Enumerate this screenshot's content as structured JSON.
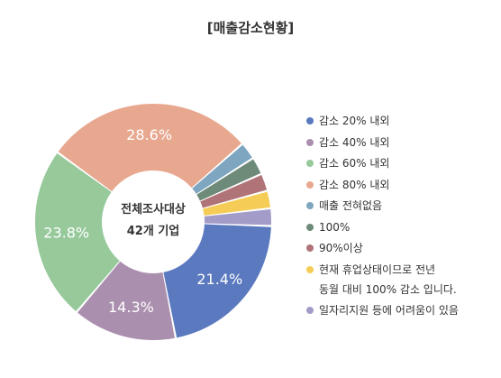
{
  "chart_data": {
    "type": "pie",
    "title": "[매출감소현황]",
    "center_label": [
      "전체조사대상",
      "42개 기업"
    ],
    "legend_position": "right",
    "slices": [
      {
        "label": "감소 20% 내외",
        "value": 21.4,
        "value_label": "21.4%",
        "color": "#5a79bf"
      },
      {
        "label": "감소 40% 내외",
        "value": 14.3,
        "value_label": "14.3%",
        "color": "#ab8fae"
      },
      {
        "label": "감소 60% 내외",
        "value": 23.8,
        "value_label": "23.8%",
        "color": "#97c99b"
      },
      {
        "label": "감소 80% 내외",
        "value": 28.6,
        "value_label": "28.6%",
        "color": "#e8a890"
      },
      {
        "label": "매출 전혀없음",
        "value": 2.4,
        "value_label": "",
        "color": "#7ea6c0"
      },
      {
        "label": "100%",
        "value": 2.4,
        "value_label": "",
        "color": "#6e8a78"
      },
      {
        "label": "90%이상",
        "value": 2.4,
        "value_label": "",
        "color": "#b07478"
      },
      {
        "label": "현재 휴업상태이므로 전년",
        "label_line2": "동월 대비 100% 감소 입니다.",
        "value": 2.4,
        "value_label": "",
        "color": "#f5cc55"
      },
      {
        "label": "일자리지원 등에 어려움이 있음",
        "value": 2.4,
        "value_label": "",
        "color": "#a49cc8"
      }
    ]
  }
}
